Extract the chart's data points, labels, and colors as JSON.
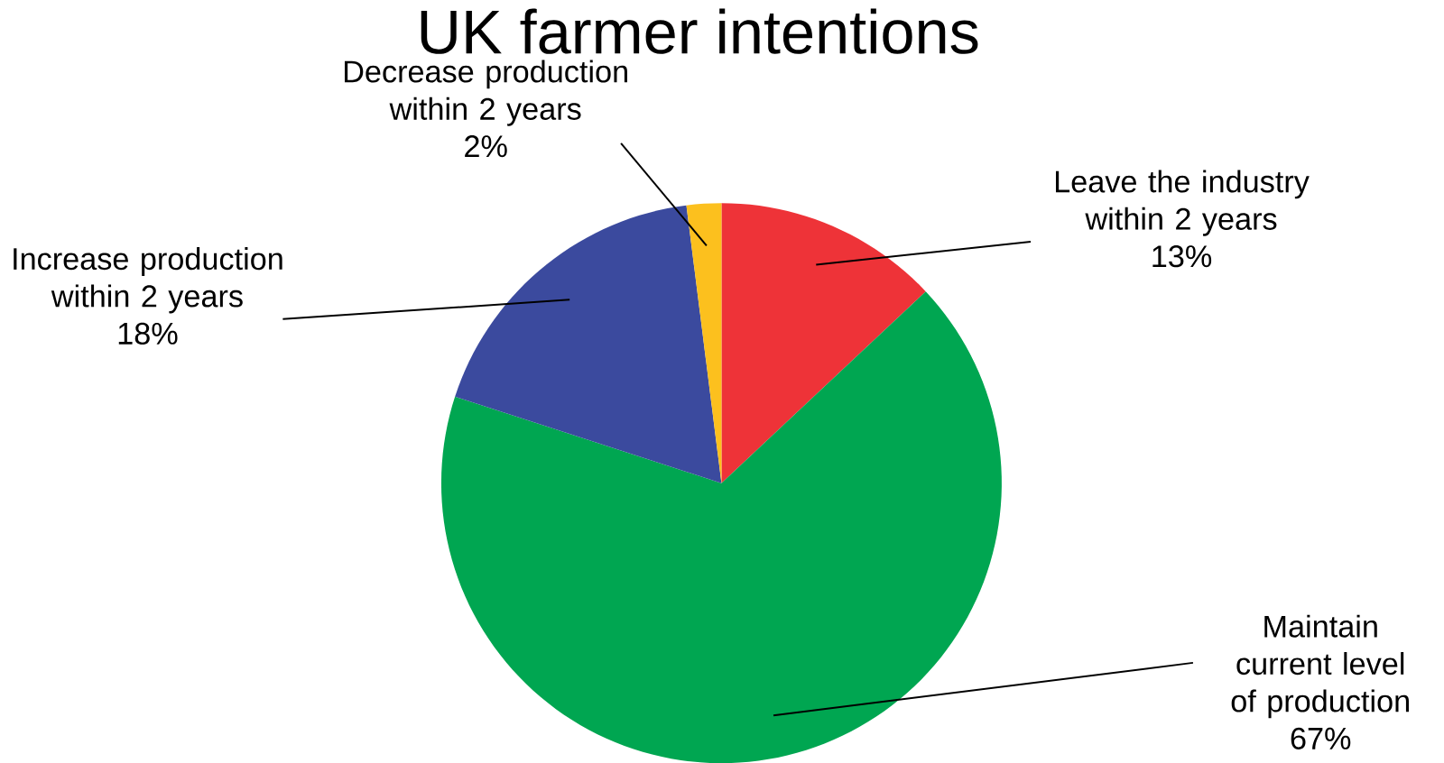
{
  "chart_data": {
    "type": "pie",
    "title": "UK farmer intentions",
    "categories": [
      "Leave the industry within 2 years",
      "Maintain current level of production",
      "Increase production within 2 years",
      "Decrease production within 2 years"
    ],
    "values": [
      13,
      67,
      18,
      2
    ],
    "value_labels": [
      "13%",
      "67%",
      "18%",
      "2%"
    ],
    "colors": [
      "#ee3338",
      "#00a651",
      "#3b4a9e",
      "#fcc01e"
    ]
  }
}
